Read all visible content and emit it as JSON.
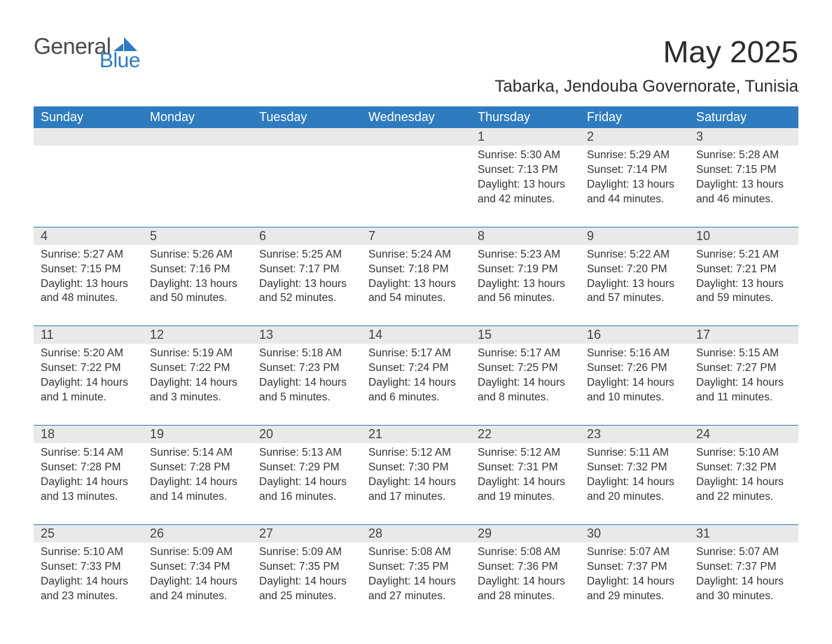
{
  "brand": {
    "word1": "General",
    "word2": "Blue",
    "mark_color": "#2e7bc0"
  },
  "title": "May 2025",
  "location": "Tabarka, Jendouba Governorate, Tunisia",
  "colors": {
    "header_bg": "#2e7bc0",
    "header_fg": "#ffffff",
    "daynum_bg": "#e9e9e9",
    "week_divider": "#2e7bc0",
    "page_bg": "#ffffff",
    "text": "#333333"
  },
  "typography": {
    "title_fontsize": 44,
    "location_fontsize": 24,
    "header_fontsize": 18,
    "daynum_fontsize": 18,
    "body_fontsize": 15.5
  },
  "day_headers": [
    "Sunday",
    "Monday",
    "Tuesday",
    "Wednesday",
    "Thursday",
    "Friday",
    "Saturday"
  ],
  "labels": {
    "sunrise": "Sunrise",
    "sunset": "Sunset",
    "daylight": "Daylight"
  },
  "weeks": [
    [
      null,
      null,
      null,
      null,
      {
        "d": "1",
        "sunrise": "5:30 AM",
        "sunset": "7:13 PM",
        "daylight": "13 hours and 42 minutes."
      },
      {
        "d": "2",
        "sunrise": "5:29 AM",
        "sunset": "7:14 PM",
        "daylight": "13 hours and 44 minutes."
      },
      {
        "d": "3",
        "sunrise": "5:28 AM",
        "sunset": "7:15 PM",
        "daylight": "13 hours and 46 minutes."
      }
    ],
    [
      {
        "d": "4",
        "sunrise": "5:27 AM",
        "sunset": "7:15 PM",
        "daylight": "13 hours and 48 minutes."
      },
      {
        "d": "5",
        "sunrise": "5:26 AM",
        "sunset": "7:16 PM",
        "daylight": "13 hours and 50 minutes."
      },
      {
        "d": "6",
        "sunrise": "5:25 AM",
        "sunset": "7:17 PM",
        "daylight": "13 hours and 52 minutes."
      },
      {
        "d": "7",
        "sunrise": "5:24 AM",
        "sunset": "7:18 PM",
        "daylight": "13 hours and 54 minutes."
      },
      {
        "d": "8",
        "sunrise": "5:23 AM",
        "sunset": "7:19 PM",
        "daylight": "13 hours and 56 minutes."
      },
      {
        "d": "9",
        "sunrise": "5:22 AM",
        "sunset": "7:20 PM",
        "daylight": "13 hours and 57 minutes."
      },
      {
        "d": "10",
        "sunrise": "5:21 AM",
        "sunset": "7:21 PM",
        "daylight": "13 hours and 59 minutes."
      }
    ],
    [
      {
        "d": "11",
        "sunrise": "5:20 AM",
        "sunset": "7:22 PM",
        "daylight": "14 hours and 1 minute."
      },
      {
        "d": "12",
        "sunrise": "5:19 AM",
        "sunset": "7:22 PM",
        "daylight": "14 hours and 3 minutes."
      },
      {
        "d": "13",
        "sunrise": "5:18 AM",
        "sunset": "7:23 PM",
        "daylight": "14 hours and 5 minutes."
      },
      {
        "d": "14",
        "sunrise": "5:17 AM",
        "sunset": "7:24 PM",
        "daylight": "14 hours and 6 minutes."
      },
      {
        "d": "15",
        "sunrise": "5:17 AM",
        "sunset": "7:25 PM",
        "daylight": "14 hours and 8 minutes."
      },
      {
        "d": "16",
        "sunrise": "5:16 AM",
        "sunset": "7:26 PM",
        "daylight": "14 hours and 10 minutes."
      },
      {
        "d": "17",
        "sunrise": "5:15 AM",
        "sunset": "7:27 PM",
        "daylight": "14 hours and 11 minutes."
      }
    ],
    [
      {
        "d": "18",
        "sunrise": "5:14 AM",
        "sunset": "7:28 PM",
        "daylight": "14 hours and 13 minutes."
      },
      {
        "d": "19",
        "sunrise": "5:14 AM",
        "sunset": "7:28 PM",
        "daylight": "14 hours and 14 minutes."
      },
      {
        "d": "20",
        "sunrise": "5:13 AM",
        "sunset": "7:29 PM",
        "daylight": "14 hours and 16 minutes."
      },
      {
        "d": "21",
        "sunrise": "5:12 AM",
        "sunset": "7:30 PM",
        "daylight": "14 hours and 17 minutes."
      },
      {
        "d": "22",
        "sunrise": "5:12 AM",
        "sunset": "7:31 PM",
        "daylight": "14 hours and 19 minutes."
      },
      {
        "d": "23",
        "sunrise": "5:11 AM",
        "sunset": "7:32 PM",
        "daylight": "14 hours and 20 minutes."
      },
      {
        "d": "24",
        "sunrise": "5:10 AM",
        "sunset": "7:32 PM",
        "daylight": "14 hours and 22 minutes."
      }
    ],
    [
      {
        "d": "25",
        "sunrise": "5:10 AM",
        "sunset": "7:33 PM",
        "daylight": "14 hours and 23 minutes."
      },
      {
        "d": "26",
        "sunrise": "5:09 AM",
        "sunset": "7:34 PM",
        "daylight": "14 hours and 24 minutes."
      },
      {
        "d": "27",
        "sunrise": "5:09 AM",
        "sunset": "7:35 PM",
        "daylight": "14 hours and 25 minutes."
      },
      {
        "d": "28",
        "sunrise": "5:08 AM",
        "sunset": "7:35 PM",
        "daylight": "14 hours and 27 minutes."
      },
      {
        "d": "29",
        "sunrise": "5:08 AM",
        "sunset": "7:36 PM",
        "daylight": "14 hours and 28 minutes."
      },
      {
        "d": "30",
        "sunrise": "5:07 AM",
        "sunset": "7:37 PM",
        "daylight": "14 hours and 29 minutes."
      },
      {
        "d": "31",
        "sunrise": "5:07 AM",
        "sunset": "7:37 PM",
        "daylight": "14 hours and 30 minutes."
      }
    ]
  ]
}
